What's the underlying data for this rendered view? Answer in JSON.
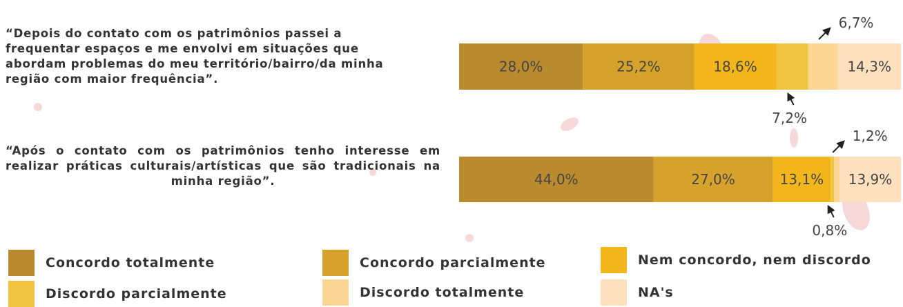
{
  "chart_data": {
    "type": "stacked_bar_horizontal",
    "categories": [
      "“Depois do contato com os patrimônios passei a frequentar espaços e me envolvi em situações que abordam problemas do meu território/bairro/da minha região com maior frequência”.",
      "“Após o contato com os patrimônios tenho interesse em realizar práticas culturais/artísticas que são tradicionais na minha região”."
    ],
    "xlim": [
      0,
      100
    ],
    "series": [
      {
        "name": "Concordo totalmente",
        "color": "#b98a2e",
        "values": [
          28.0,
          44.0
        ],
        "value_labels": [
          "28,0%",
          "44,0%"
        ]
      },
      {
        "name": "Concordo parcialmente",
        "color": "#d6a22b",
        "values": [
          25.2,
          27.0
        ],
        "value_labels": [
          "25,2%",
          "27,0%"
        ]
      },
      {
        "name": "Nem concordo, nem discordo",
        "color": "#f2b51c",
        "values": [
          18.6,
          13.1
        ],
        "value_labels": [
          "18,6%",
          "13,1%"
        ]
      },
      {
        "name": "Discordo parcialmente",
        "color": "#f0c440",
        "values": [
          7.2,
          0.8
        ],
        "value_labels": [
          "7,2%",
          "0,8%"
        ]
      },
      {
        "name": "Discordo totalmente",
        "color": "#fbd694",
        "values": [
          6.7,
          1.2
        ],
        "value_labels": [
          "6,7%",
          "1,2%"
        ]
      },
      {
        "name": "NA's",
        "color": "#fde0bd",
        "values": [
          14.3,
          13.9
        ],
        "value_labels": [
          "14,3%",
          "13,9%"
        ]
      }
    ]
  }
}
